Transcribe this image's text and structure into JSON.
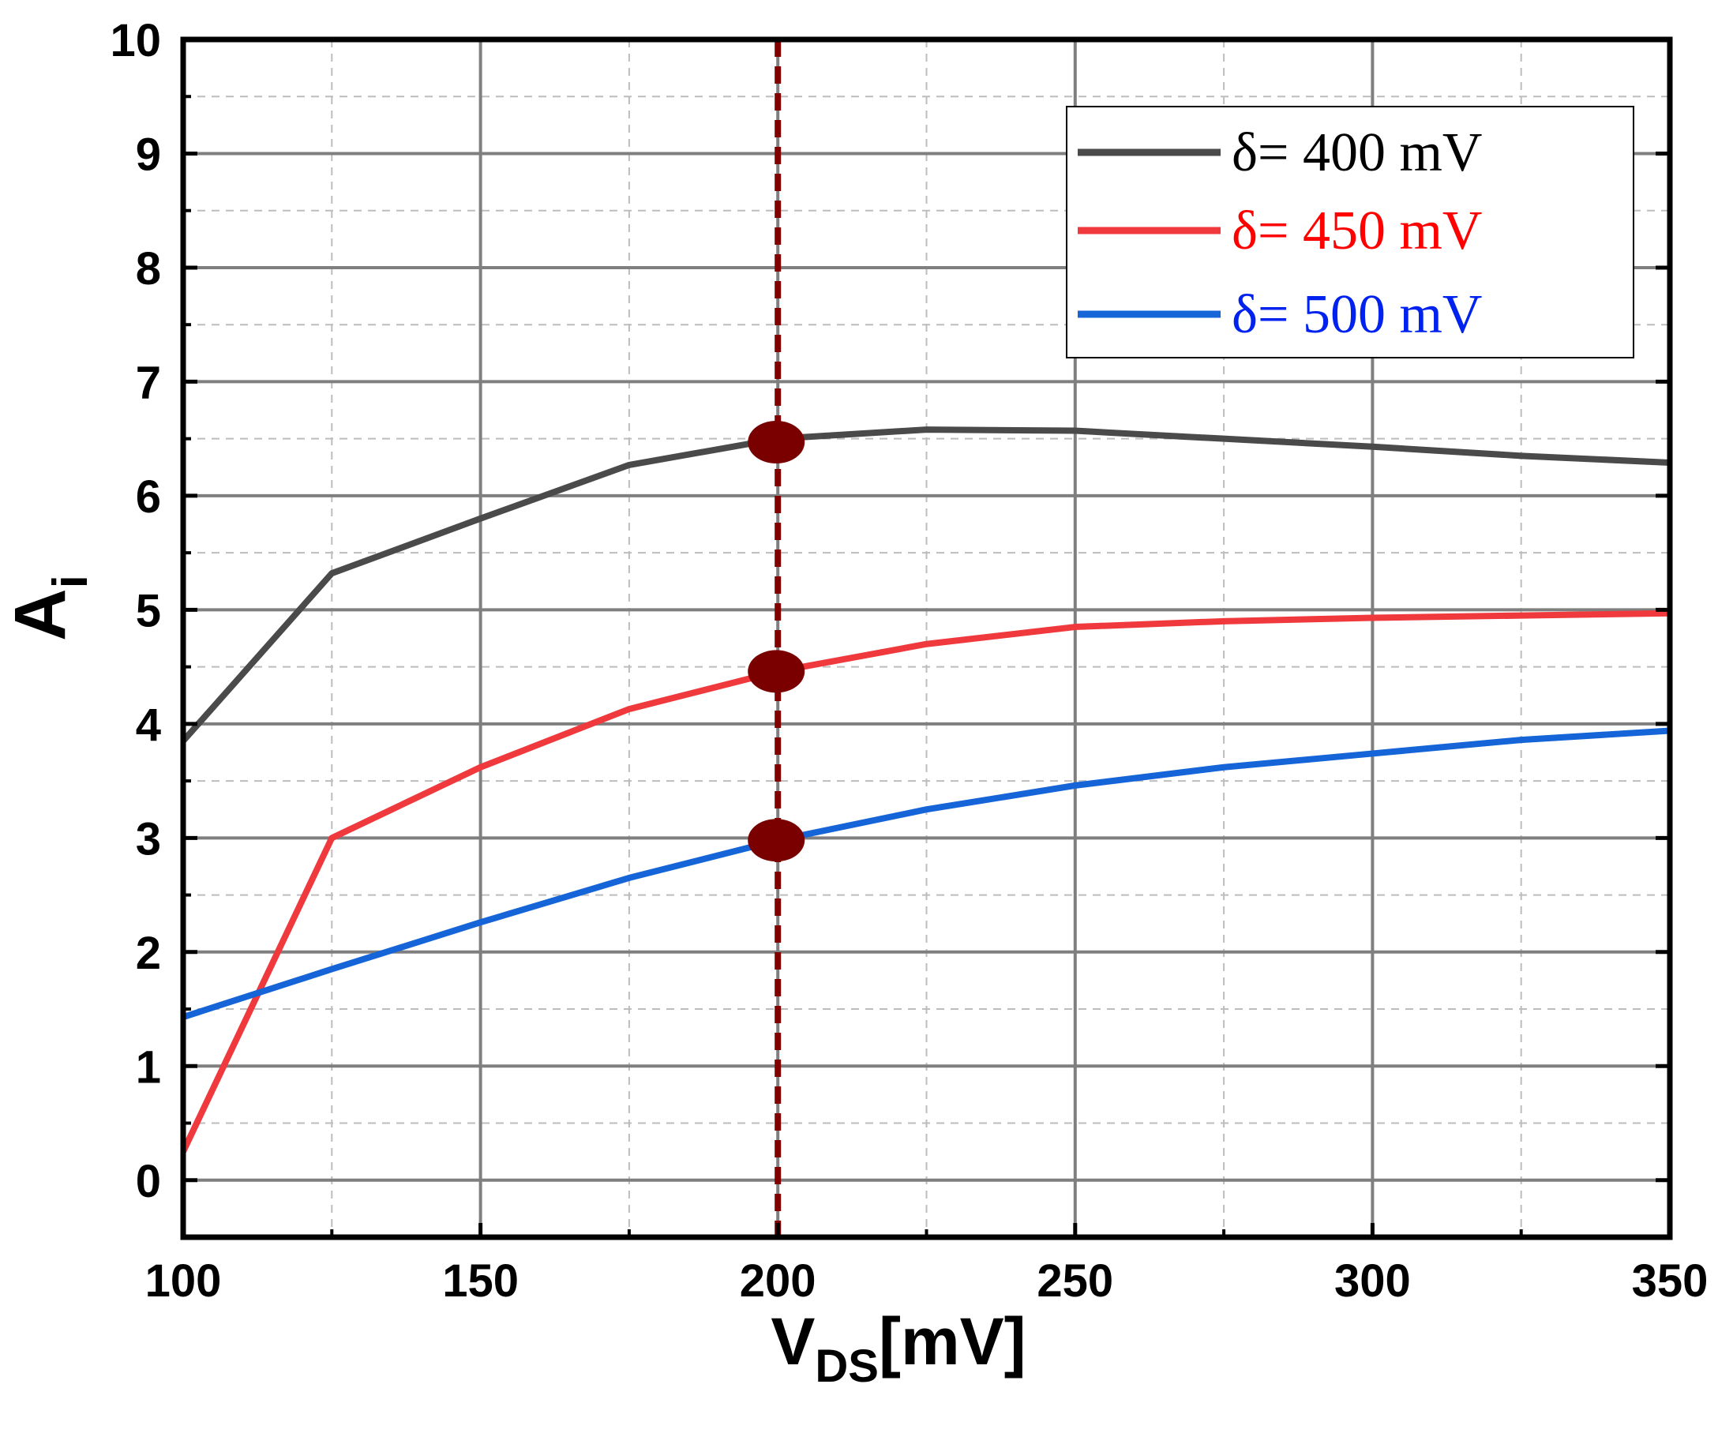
{
  "chart_data": {
    "type": "line",
    "title": "",
    "xlabel": {
      "main": "V",
      "sub": "DS",
      "unit": "[mV]"
    },
    "ylabel": {
      "main": "A",
      "sub": "i"
    },
    "xlim": [
      100,
      350
    ],
    "ylim": [
      -0.5,
      10
    ],
    "xticks": [
      100,
      150,
      200,
      250,
      300,
      350
    ],
    "xtick_labels": [
      "100",
      "150",
      "200",
      "250",
      "300",
      "350"
    ],
    "yticks": [
      0,
      1,
      2,
      3,
      4,
      5,
      6,
      7,
      8,
      9,
      10
    ],
    "ytick_labels": [
      "0",
      "1",
      "2",
      "3",
      "4",
      "5",
      "6",
      "7",
      "8",
      "9",
      "10"
    ],
    "grid": true,
    "legend_position": "top-right",
    "x": [
      100,
      125,
      150,
      175,
      200,
      225,
      250,
      275,
      300,
      325,
      350
    ],
    "series": [
      {
        "name": "δ= 400 mV",
        "color": "#4a4a4a",
        "values": [
          3.85,
          5.32,
          5.8,
          6.27,
          6.5,
          6.58,
          6.57,
          6.5,
          6.43,
          6.35,
          6.29
        ]
      },
      {
        "name": "δ= 450 mV",
        "color": "#f0393d",
        "values": [
          0.25,
          3.0,
          3.62,
          4.13,
          4.46,
          4.7,
          4.85,
          4.9,
          4.93,
          4.95,
          4.97
        ]
      },
      {
        "name": "δ= 500 mV",
        "color": "#1565d8",
        "values": [
          1.43,
          1.85,
          2.26,
          2.65,
          2.98,
          3.25,
          3.46,
          3.62,
          3.74,
          3.86,
          3.94
        ]
      }
    ],
    "reference_line": {
      "x": 200,
      "color": "#800000",
      "style": "dashed"
    },
    "highlight_points": [
      {
        "x": 200,
        "y": 6.47
      },
      {
        "x": 200,
        "y": 4.46
      },
      {
        "x": 200,
        "y": 2.98
      }
    ],
    "marker_color": "#7a0000"
  }
}
